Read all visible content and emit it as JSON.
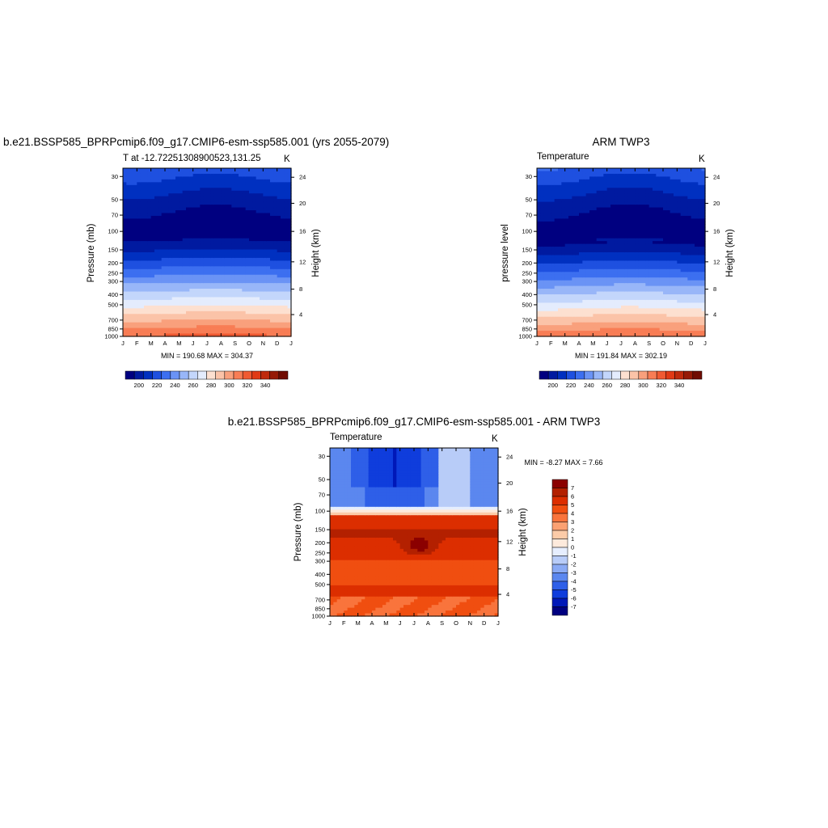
{
  "chart_data": [
    {
      "type": "heatmap",
      "title": "b.e21.BSSP585_BPRPcmip6.f09_g17.CMIP6-esm-ssp585.001 (yrs 2055-2079)",
      "subtitle_left": "T at -12.72251308900523,131.25",
      "subtitle_right": "K",
      "ylabel": "Pressure (mb)",
      "ylabel_right": "Height (km)",
      "x_ticks": [
        "J",
        "F",
        "M",
        "A",
        "M",
        "J",
        "J",
        "A",
        "S",
        "O",
        "N",
        "D",
        "J"
      ],
      "y_ticks": [
        30,
        50,
        70,
        100,
        150,
        200,
        250,
        300,
        400,
        500,
        700,
        850,
        1000
      ],
      "y_right_ticks": [
        24,
        20,
        16,
        12,
        8,
        4
      ],
      "ylim": [
        1000,
        25
      ],
      "y_log": true,
      "stats": "MIN = 190.68 MAX = 304.37",
      "colorbar": {
        "levels": [
          195,
          200,
          205,
          210,
          215,
          220,
          225,
          230,
          235,
          240,
          245,
          250,
          255,
          260,
          265,
          270,
          275,
          280,
          285,
          290,
          295,
          300,
          305,
          310,
          315,
          320,
          325,
          330,
          335,
          340,
          345
        ],
        "labels": [
          "200",
          "220",
          "240",
          "260",
          "280",
          "300",
          "320",
          "340"
        ]
      }
    },
    {
      "type": "heatmap",
      "title": "ARM TWP3",
      "subtitle_left": "Temperature",
      "subtitle_right": "K",
      "ylabel": "pressure level",
      "ylabel_right": "Height (km)",
      "x_ticks": [
        "J",
        "F",
        "M",
        "A",
        "M",
        "J",
        "J",
        "A",
        "S",
        "O",
        "N",
        "D",
        "J"
      ],
      "y_ticks": [
        30,
        50,
        70,
        100,
        150,
        200,
        250,
        300,
        400,
        500,
        700,
        850,
        1000
      ],
      "y_right_ticks": [
        24,
        20,
        16,
        12,
        8,
        4
      ],
      "ylim": [
        1000,
        25
      ],
      "y_log": true,
      "stats": "MIN = 191.84 MAX = 302.19",
      "colorbar": {
        "labels": [
          "200",
          "220",
          "240",
          "260",
          "280",
          "300",
          "320",
          "340"
        ]
      }
    },
    {
      "type": "heatmap",
      "title": "b.e21.BSSP585_BPRPcmip6.f09_g17.CMIP6-esm-ssp585.001 - ARM TWP3",
      "subtitle_left": "Temperature",
      "subtitle_right": "K",
      "ylabel": "Pressure (mb)",
      "ylabel_right": "Height (km)",
      "x_ticks": [
        "J",
        "F",
        "M",
        "A",
        "M",
        "J",
        "J",
        "A",
        "S",
        "O",
        "N",
        "D",
        "J"
      ],
      "y_ticks": [
        30,
        50,
        70,
        100,
        150,
        200,
        250,
        300,
        400,
        500,
        700,
        850,
        1000
      ],
      "y_right_ticks": [
        24,
        20,
        16,
        12,
        8,
        4
      ],
      "ylim": [
        1000,
        25
      ],
      "y_log": true,
      "stats": "MIN =  -8.27 MAX =   7.66",
      "colorbar": {
        "labels": [
          "7",
          "6",
          "5",
          "4",
          "3",
          "2",
          "1",
          "0",
          "-1",
          "-2",
          "-3",
          "-4",
          "-5",
          "-6",
          "-7"
        ]
      }
    }
  ],
  "colors": {
    "temperature_scale": [
      "#000080",
      "#001aa0",
      "#0030c0",
      "#1e50e0",
      "#3c6ff0",
      "#6a93f5",
      "#98b6f8",
      "#c3d6fb",
      "#e4ecfd",
      "#fde0d0",
      "#fbc3a8",
      "#f9a07c",
      "#f87d55",
      "#f05a32",
      "#e13a15",
      "#bf2a0c",
      "#961a06",
      "#700c02"
    ],
    "diff_scale": [
      "#8b0000",
      "#b32000",
      "#dc2e00",
      "#f04e10",
      "#f9743c",
      "#fba172",
      "#fccba8",
      "#fdeadc",
      "#e6eefe",
      "#b8ccf8",
      "#8aaaf4",
      "#5b87ef",
      "#2e5fe8",
      "#0f3ddc",
      "#0018b8",
      "#000080"
    ]
  }
}
